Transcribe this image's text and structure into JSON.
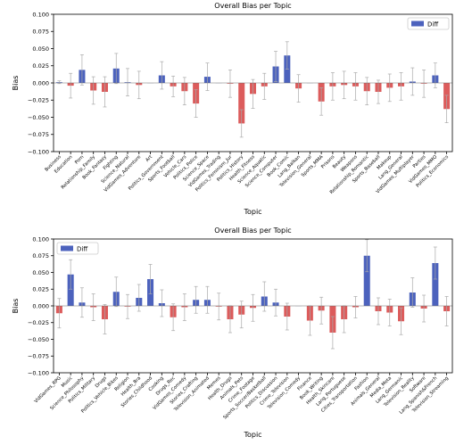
{
  "chart_data": [
    {
      "type": "bar",
      "title": "Overall Bias per Topic",
      "xlabel": "Topic",
      "ylabel": "Bias",
      "ylim": [
        -0.1,
        0.1
      ],
      "yticks": [
        "0.100",
        "0.075",
        "0.050",
        "0.025",
        "0.000",
        "−0.025",
        "−0.050",
        "−0.075",
        "−0.100"
      ],
      "legend": {
        "label": "Diff",
        "placement": "top-right"
      },
      "colors": {
        "positive": "#4c62bd",
        "negative": "#dc5c5c",
        "error": "#aaaaaa"
      },
      "categories": [
        "Business",
        "Education",
        "Porn",
        "Relationship_Family",
        "Book_Fantasy",
        "Fighting",
        "Science_Natural",
        "VidGames_Adventure",
        "Art",
        "Politics_Government",
        "Sports_Football",
        "Vehicle_Cars",
        "Politics_Police",
        "Science_Space",
        "VidGames_Trading",
        "Politics_Feminism_Jur",
        "Politics_History",
        "Health_Fitness",
        "Science_Aquatic",
        "Science_Computer",
        "Book_Comic",
        "Lang_Balkan",
        "Television_General",
        "Sports_MMA",
        "Prisons",
        "Beauty",
        "Weapons",
        "Relationship_Romantic",
        "Sports_Baseball",
        "Makeup",
        "Lang_General",
        "VidGames_Multiplayer",
        "Parties",
        "VidGames_MMO",
        "Politics_Economics"
      ],
      "values": [
        0.001,
        -0.004,
        0.019,
        -0.011,
        -0.013,
        0.021,
        0.001,
        -0.003,
        0.0,
        0.011,
        -0.005,
        -0.012,
        -0.03,
        0.009,
        0.0,
        -0.001,
        -0.059,
        -0.016,
        -0.005,
        0.024,
        0.04,
        -0.008,
        0.0,
        -0.027,
        -0.005,
        -0.003,
        -0.005,
        -0.012,
        -0.013,
        -0.007,
        -0.005,
        0.002,
        -0.001,
        0.011,
        -0.038
      ],
      "errors": [
        0.002,
        0.018,
        0.022,
        0.02,
        0.022,
        0.022,
        0.02,
        0.02,
        0.0,
        0.02,
        0.015,
        0.02,
        0.02,
        0.02,
        0.0,
        0.02,
        0.02,
        0.021,
        0.019,
        0.022,
        0.02,
        0.02,
        0.0,
        0.02,
        0.02,
        0.02,
        0.02,
        0.02,
        0.017,
        0.02,
        0.02,
        0.02,
        0.02,
        0.018,
        0.02
      ]
    },
    {
      "type": "bar",
      "title": "Overall Bias per Topic",
      "xlabel": "Topic",
      "ylabel": "Bias",
      "ylim": [
        -0.1,
        0.1
      ],
      "yticks": [
        "0.100",
        "0.075",
        "0.050",
        "0.025",
        "0.000",
        "−0.025",
        "−0.050",
        "−0.075",
        "−0.100"
      ],
      "legend": {
        "label": "Diff",
        "placement": "top-left"
      },
      "colors": {
        "positive": "#4c62bd",
        "negative": "#dc5c5c",
        "error": "#aaaaaa"
      },
      "categories": [
        "VidGames_RPG",
        "Music",
        "Science_Philosophy",
        "Politics_Military",
        "Drugs",
        "Politics_Vehicle_Bikes",
        "Religion",
        "Health_Bra",
        "Stories_Childhood",
        "Cooking",
        "Drugs_Rec",
        "VidGames_Comedy",
        "Stories_Crafting",
        "Television_Animated",
        "Memes",
        "Health_Drugs",
        "Animals_Pets",
        "Crime_Footage",
        "Sports_Soccer/Basketball",
        "Politics_Discussion",
        "Crime_Television",
        "Television_Comedy",
        "Finance",
        "Book_Writing",
        "Health_Skincare",
        "Lang_Portuguese",
        "Cities_Transportation",
        "Fashion",
        "Animals_General",
        "Media_Meta",
        "Lang_Germanic",
        "Television_Reality",
        "Software",
        "Lang_Spanish&French",
        "Television_Streaming"
      ],
      "values": [
        -0.011,
        0.047,
        0.005,
        -0.002,
        -0.02,
        0.021,
        -0.001,
        0.012,
        0.04,
        0.004,
        -0.017,
        -0.002,
        0.009,
        0.009,
        -0.001,
        -0.02,
        -0.013,
        -0.003,
        0.014,
        0.005,
        -0.016,
        0.0,
        -0.022,
        -0.007,
        -0.04,
        -0.02,
        -0.002,
        0.075,
        -0.008,
        -0.01,
        -0.023,
        0.02,
        -0.004,
        0.064,
        -0.008
      ],
      "errors": [
        0.022,
        0.022,
        0.022,
        0.02,
        0.022,
        0.022,
        0.018,
        0.02,
        0.022,
        0.02,
        0.02,
        0.02,
        0.02,
        0.02,
        0.02,
        0.02,
        0.02,
        0.02,
        0.022,
        0.02,
        0.02,
        0.0,
        0.022,
        0.02,
        0.024,
        0.02,
        0.016,
        0.024,
        0.02,
        0.02,
        0.02,
        0.022,
        0.02,
        0.024,
        0.022
      ]
    }
  ]
}
